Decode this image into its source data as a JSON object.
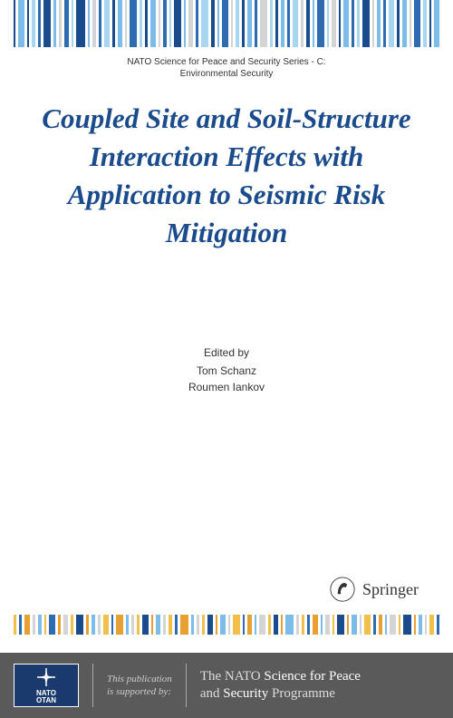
{
  "series": {
    "line1": "NATO Science for Peace and Security Series - C:",
    "line2": "Environmental Security"
  },
  "title": "Coupled Site and Soil-Structure Interaction Effects with Application to Seismic Risk Mitigation",
  "editors": {
    "label": "Edited by",
    "names": [
      "Tom Schanz",
      "Roumen Iankov"
    ]
  },
  "publisher": {
    "name": "Springer"
  },
  "footer": {
    "nato": {
      "top": "NATO",
      "bottom": "OTAN"
    },
    "supported_label": "This publication is supported by:",
    "programme_prefix": "The NATO",
    "programme_mid": "Science for Peace",
    "programme_and": "and",
    "programme_suffix": "Security",
    "programme_word": "Programme"
  },
  "colors": {
    "title": "#1a4b8c",
    "footer_bg": "#5a5a5a",
    "nato_bg": "#1a3a6e"
  },
  "top_bars": [
    {
      "w": 3,
      "c": "#1a4b8c"
    },
    {
      "w": 8,
      "c": "#7bbde8"
    },
    {
      "w": 3,
      "c": "#1a4b8c"
    },
    {
      "w": 5,
      "c": "#a8d5f0"
    },
    {
      "w": 3,
      "c": "#2e6bb0"
    },
    {
      "w": 10,
      "c": "#1a4b8c"
    },
    {
      "w": 4,
      "c": "#7bbde8"
    },
    {
      "w": 3,
      "c": "#d4d4d4"
    },
    {
      "w": 6,
      "c": "#2e6bb0"
    },
    {
      "w": 3,
      "c": "#a8d5f0"
    },
    {
      "w": 12,
      "c": "#1a4b8c"
    },
    {
      "w": 3,
      "c": "#7bbde8"
    },
    {
      "w": 5,
      "c": "#d4d4d4"
    },
    {
      "w": 3,
      "c": "#2e6bb0"
    },
    {
      "w": 8,
      "c": "#a8d5f0"
    },
    {
      "w": 3,
      "c": "#1a4b8c"
    },
    {
      "w": 6,
      "c": "#7bbde8"
    },
    {
      "w": 3,
      "c": "#d4d4d4"
    },
    {
      "w": 10,
      "c": "#2e6bb0"
    },
    {
      "w": 4,
      "c": "#a8d5f0"
    },
    {
      "w": 3,
      "c": "#1a4b8c"
    },
    {
      "w": 7,
      "c": "#7bbde8"
    },
    {
      "w": 3,
      "c": "#d4d4d4"
    },
    {
      "w": 5,
      "c": "#2e6bb0"
    },
    {
      "w": 3,
      "c": "#a8d5f0"
    },
    {
      "w": 9,
      "c": "#1a4b8c"
    },
    {
      "w": 3,
      "c": "#7bbde8"
    },
    {
      "w": 6,
      "c": "#d4d4d4"
    },
    {
      "w": 3,
      "c": "#2e6bb0"
    },
    {
      "w": 11,
      "c": "#a8d5f0"
    },
    {
      "w": 4,
      "c": "#1a4b8c"
    },
    {
      "w": 3,
      "c": "#7bbde8"
    },
    {
      "w": 8,
      "c": "#2e6bb0"
    },
    {
      "w": 3,
      "c": "#d4d4d4"
    },
    {
      "w": 5,
      "c": "#a8d5f0"
    },
    {
      "w": 3,
      "c": "#1a4b8c"
    },
    {
      "w": 7,
      "c": "#7bbde8"
    },
    {
      "w": 3,
      "c": "#2e6bb0"
    },
    {
      "w": 10,
      "c": "#d4d4d4"
    },
    {
      "w": 4,
      "c": "#a8d5f0"
    },
    {
      "w": 3,
      "c": "#1a4b8c"
    },
    {
      "w": 6,
      "c": "#7bbde8"
    },
    {
      "w": 3,
      "c": "#2e6bb0"
    },
    {
      "w": 8,
      "c": "#a8d5f0"
    },
    {
      "w": 3,
      "c": "#d4d4d4"
    },
    {
      "w": 5,
      "c": "#1a4b8c"
    },
    {
      "w": 3,
      "c": "#7bbde8"
    },
    {
      "w": 9,
      "c": "#2e6bb0"
    },
    {
      "w": 3,
      "c": "#a8d5f0"
    },
    {
      "w": 6,
      "c": "#d4d4d4"
    },
    {
      "w": 3,
      "c": "#1a4b8c"
    },
    {
      "w": 7,
      "c": "#7bbde8"
    },
    {
      "w": 4,
      "c": "#2e6bb0"
    },
    {
      "w": 3,
      "c": "#a8d5f0"
    },
    {
      "w": 10,
      "c": "#1a4b8c"
    },
    {
      "w": 3,
      "c": "#d4d4d4"
    },
    {
      "w": 5,
      "c": "#7bbde8"
    },
    {
      "w": 3,
      "c": "#2e6bb0"
    },
    {
      "w": 8,
      "c": "#a8d5f0"
    },
    {
      "w": 3,
      "c": "#1a4b8c"
    },
    {
      "w": 6,
      "c": "#7bbde8"
    },
    {
      "w": 3,
      "c": "#d4d4d4"
    },
    {
      "w": 9,
      "c": "#2e6bb0"
    },
    {
      "w": 4,
      "c": "#a8d5f0"
    },
    {
      "w": 3,
      "c": "#1a4b8c"
    },
    {
      "w": 7,
      "c": "#7bbde8"
    }
  ],
  "mid_bars": [
    {
      "w": 4,
      "c": "#f0c04a"
    },
    {
      "w": 3,
      "c": "#2e6bb0"
    },
    {
      "w": 7,
      "c": "#e8a030"
    },
    {
      "w": 3,
      "c": "#d4d4d4"
    },
    {
      "w": 5,
      "c": "#7bbde8"
    },
    {
      "w": 3,
      "c": "#f0c04a"
    },
    {
      "w": 8,
      "c": "#2e6bb0"
    },
    {
      "w": 3,
      "c": "#e8a030"
    },
    {
      "w": 6,
      "c": "#d4d4d4"
    },
    {
      "w": 3,
      "c": "#f0c04a"
    },
    {
      "w": 10,
      "c": "#1a4b8c"
    },
    {
      "w": 3,
      "c": "#e8a030"
    },
    {
      "w": 5,
      "c": "#7bbde8"
    },
    {
      "w": 3,
      "c": "#d4d4d4"
    },
    {
      "w": 7,
      "c": "#f0c04a"
    },
    {
      "w": 3,
      "c": "#2e6bb0"
    },
    {
      "w": 9,
      "c": "#e8a030"
    },
    {
      "w": 3,
      "c": "#7bbde8"
    },
    {
      "w": 4,
      "c": "#d4d4d4"
    },
    {
      "w": 3,
      "c": "#f0c04a"
    },
    {
      "w": 8,
      "c": "#1a4b8c"
    },
    {
      "w": 3,
      "c": "#e8a030"
    },
    {
      "w": 6,
      "c": "#7bbde8"
    },
    {
      "w": 3,
      "c": "#d4d4d4"
    },
    {
      "w": 5,
      "c": "#f0c04a"
    },
    {
      "w": 3,
      "c": "#2e6bb0"
    },
    {
      "w": 11,
      "c": "#e8a030"
    },
    {
      "w": 3,
      "c": "#7bbde8"
    },
    {
      "w": 4,
      "c": "#d4d4d4"
    },
    {
      "w": 3,
      "c": "#f0c04a"
    },
    {
      "w": 7,
      "c": "#1a4b8c"
    },
    {
      "w": 3,
      "c": "#e8a030"
    },
    {
      "w": 6,
      "c": "#7bbde8"
    },
    {
      "w": 3,
      "c": "#d4d4d4"
    },
    {
      "w": 9,
      "c": "#f0c04a"
    },
    {
      "w": 3,
      "c": "#2e6bb0"
    },
    {
      "w": 5,
      "c": "#e8a030"
    },
    {
      "w": 3,
      "c": "#7bbde8"
    },
    {
      "w": 8,
      "c": "#d4d4d4"
    },
    {
      "w": 3,
      "c": "#f0c04a"
    },
    {
      "w": 6,
      "c": "#1a4b8c"
    },
    {
      "w": 3,
      "c": "#e8a030"
    },
    {
      "w": 10,
      "c": "#7bbde8"
    },
    {
      "w": 3,
      "c": "#d4d4d4"
    },
    {
      "w": 4,
      "c": "#f0c04a"
    },
    {
      "w": 3,
      "c": "#2e6bb0"
    },
    {
      "w": 7,
      "c": "#e8a030"
    },
    {
      "w": 3,
      "c": "#7bbde8"
    },
    {
      "w": 5,
      "c": "#d4d4d4"
    },
    {
      "w": 3,
      "c": "#f0c04a"
    },
    {
      "w": 9,
      "c": "#1a4b8c"
    },
    {
      "w": 3,
      "c": "#e8a030"
    },
    {
      "w": 6,
      "c": "#7bbde8"
    },
    {
      "w": 3,
      "c": "#d4d4d4"
    },
    {
      "w": 8,
      "c": "#f0c04a"
    },
    {
      "w": 3,
      "c": "#2e6bb0"
    },
    {
      "w": 5,
      "c": "#e8a030"
    },
    {
      "w": 3,
      "c": "#7bbde8"
    },
    {
      "w": 7,
      "c": "#d4d4d4"
    },
    {
      "w": 3,
      "c": "#f0c04a"
    },
    {
      "w": 10,
      "c": "#1a4b8c"
    },
    {
      "w": 3,
      "c": "#e8a030"
    },
    {
      "w": 4,
      "c": "#7bbde8"
    },
    {
      "w": 3,
      "c": "#d4d4d4"
    },
    {
      "w": 6,
      "c": "#f0c04a"
    },
    {
      "w": 3,
      "c": "#2e6bb0"
    }
  ]
}
